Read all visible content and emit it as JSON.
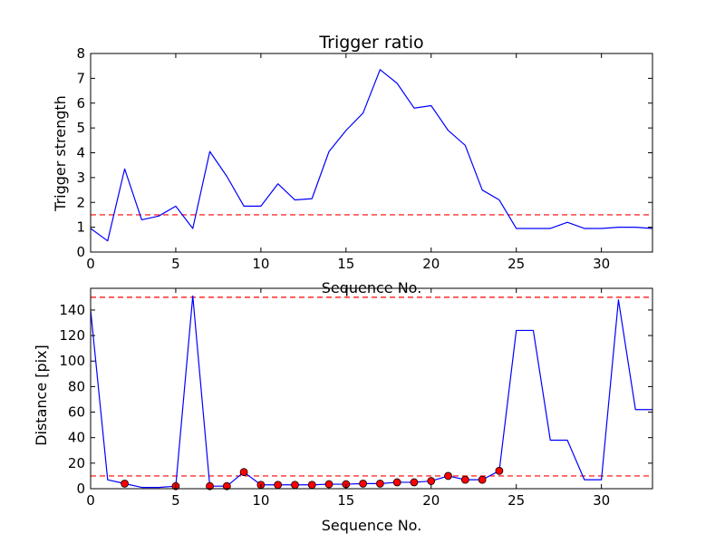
{
  "chart_data": [
    {
      "type": "line",
      "title": "Trigger ratio",
      "xlabel": "Sequence No.",
      "ylabel": "Trigger strength",
      "xlim": [
        0,
        33
      ],
      "ylim": [
        0,
        8
      ],
      "xticks": [
        0,
        5,
        10,
        15,
        20,
        25,
        30
      ],
      "yticks": [
        0,
        1,
        2,
        3,
        4,
        5,
        6,
        7,
        8
      ],
      "grid": false,
      "series": [
        {
          "color": "#0000ff",
          "x": [
            0,
            1,
            2,
            3,
            4,
            5,
            6,
            7,
            8,
            9,
            10,
            11,
            12,
            13,
            14,
            15,
            16,
            17,
            18,
            19,
            20,
            21,
            22,
            23,
            24,
            25,
            26,
            27,
            28,
            29,
            30,
            31,
            32,
            33
          ],
          "values": [
            0.95,
            0.45,
            3.35,
            1.3,
            1.45,
            1.85,
            0.95,
            4.05,
            3.05,
            1.85,
            1.85,
            2.75,
            2.1,
            2.15,
            4.05,
            4.9,
            5.6,
            7.35,
            6.8,
            5.8,
            5.9,
            4.9,
            4.3,
            2.5,
            2.1,
            0.95,
            0.95,
            0.95,
            1.2,
            0.95,
            0.95,
            1.0,
            1.0,
            0.95
          ]
        }
      ],
      "reference_lines": [
        {
          "y": 1.5,
          "color": "#ff0000",
          "style": "dashed"
        }
      ]
    },
    {
      "type": "line",
      "title": "",
      "xlabel": "Sequence No.",
      "ylabel": "Distance [pix]",
      "xlim": [
        0,
        33
      ],
      "ylim": [
        0,
        157
      ],
      "xticks": [
        0,
        5,
        10,
        15,
        20,
        25,
        30
      ],
      "yticks": [
        0,
        20,
        40,
        60,
        80,
        100,
        120,
        140
      ],
      "grid": false,
      "series": [
        {
          "color": "#0000ff",
          "x": [
            0,
            1,
            2,
            3,
            4,
            5,
            6,
            7,
            8,
            9,
            10,
            11,
            12,
            13,
            14,
            15,
            16,
            17,
            18,
            19,
            20,
            21,
            22,
            23,
            24,
            25,
            26,
            27,
            28,
            29,
            30,
            31,
            32,
            33
          ],
          "values": [
            140,
            7,
            4,
            1,
            1,
            2,
            151,
            2,
            2,
            13,
            3,
            3,
            3,
            3,
            3.5,
            3.5,
            4,
            4,
            5,
            5,
            6,
            10,
            7,
            7,
            14,
            124,
            124,
            38,
            38,
            7,
            7,
            148,
            62,
            62
          ]
        }
      ],
      "markers": {
        "color": "#ff0000",
        "x": [
          2,
          5,
          7,
          8,
          9,
          10,
          11,
          12,
          13,
          14,
          15,
          16,
          17,
          18,
          19,
          20,
          21,
          22,
          23,
          24
        ],
        "values": [
          4,
          2,
          2,
          2,
          13,
          3,
          3,
          3,
          3,
          3.5,
          3.5,
          4,
          4,
          5,
          5,
          6,
          10,
          7,
          7,
          14
        ]
      },
      "reference_lines": [
        {
          "y": 150,
          "color": "#ff0000",
          "style": "dashed"
        },
        {
          "y": 10,
          "color": "#ff0000",
          "style": "dashed"
        }
      ]
    }
  ]
}
